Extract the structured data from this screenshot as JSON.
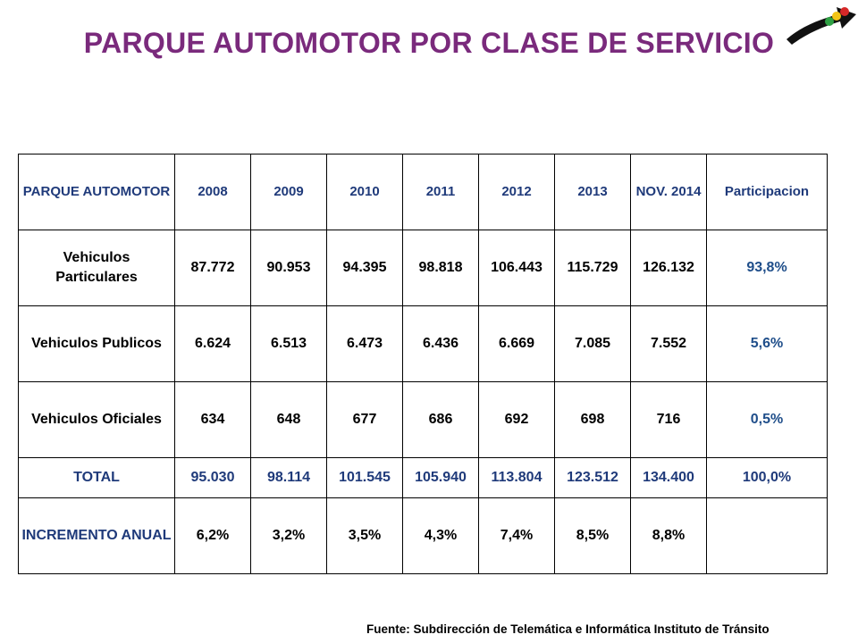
{
  "title": "PARQUE AUTOMOTOR POR CLASE DE SERVICIO",
  "table": {
    "header": [
      "PARQUE AUTOMOTOR",
      "2008",
      "2009",
      "2010",
      "2011",
      "2012",
      "2013",
      "NOV. 2014",
      "Participacion"
    ],
    "rows": [
      {
        "label": "Vehiculos Particulares",
        "values": [
          "87.772",
          "90.953",
          "94.395",
          "98.818",
          "106.443",
          "115.729",
          "126.132"
        ],
        "share": "93,8%"
      },
      {
        "label": "Vehiculos Publicos",
        "values": [
          "6.624",
          "6.513",
          "6.473",
          "6.436",
          "6.669",
          "7.085",
          "7.552"
        ],
        "share": "5,6%"
      },
      {
        "label": "Vehiculos Oficiales",
        "values": [
          "634",
          "648",
          "677",
          "686",
          "692",
          "698",
          "716"
        ],
        "share": "0,5%"
      }
    ],
    "total": {
      "label": "TOTAL",
      "values": [
        "95.030",
        "98.114",
        "101.545",
        "105.940",
        "113.804",
        "123.512",
        "134.400"
      ],
      "share": "100,0%"
    },
    "increment": {
      "label": "INCREMENTO ANUAL",
      "values": [
        "6,2%",
        "3,2%",
        "3,5%",
        "4,3%",
        "7,4%",
        "8,5%",
        "8,8%"
      ],
      "share": ""
    }
  },
  "source": "Fuente: Subdirección de Telemática e Informática Instituto de Tránsito",
  "colors": {
    "title": "#7a2a7c",
    "header_text": "#1f3a7a",
    "share_text": "#1f4e8a"
  },
  "logo_icon": "traffic-light-icon"
}
